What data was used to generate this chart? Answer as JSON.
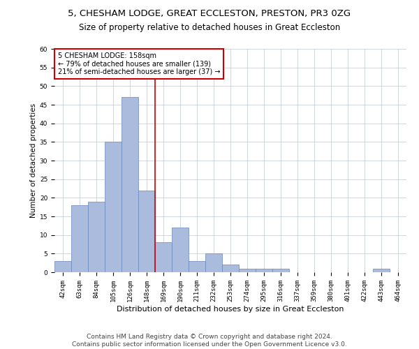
{
  "title1": "5, CHESHAM LODGE, GREAT ECCLESTON, PRESTON, PR3 0ZG",
  "title2": "Size of property relative to detached houses in Great Eccleston",
  "xlabel": "Distribution of detached houses by size in Great Eccleston",
  "ylabel": "Number of detached properties",
  "footer1": "Contains HM Land Registry data © Crown copyright and database right 2024.",
  "footer2": "Contains public sector information licensed under the Open Government Licence v3.0.",
  "annotation_line1": "5 CHESHAM LODGE: 158sqm",
  "annotation_line2": "← 79% of detached houses are smaller (139)",
  "annotation_line3": "21% of semi-detached houses are larger (37) →",
  "bar_labels": [
    "42sqm",
    "63sqm",
    "84sqm",
    "105sqm",
    "126sqm",
    "148sqm",
    "169sqm",
    "190sqm",
    "211sqm",
    "232sqm",
    "253sqm",
    "274sqm",
    "295sqm",
    "316sqm",
    "337sqm",
    "359sqm",
    "380sqm",
    "401sqm",
    "422sqm",
    "443sqm",
    "464sqm"
  ],
  "bar_values": [
    3,
    18,
    19,
    35,
    47,
    22,
    8,
    12,
    3,
    5,
    2,
    1,
    1,
    1,
    0,
    0,
    0,
    0,
    0,
    1,
    0
  ],
  "bar_color": "#AABBDD",
  "bar_edge_color": "#6688BB",
  "property_line_x": 5.5,
  "ylim": [
    0,
    60
  ],
  "yticks": [
    0,
    5,
    10,
    15,
    20,
    25,
    30,
    35,
    40,
    45,
    50,
    55,
    60
  ],
  "background_color": "#FFFFFF",
  "grid_color": "#C8D0DC",
  "annotation_box_color": "#FFFFFF",
  "annotation_box_edge_color": "#CC0000",
  "vline_color": "#CC0000",
  "title1_fontsize": 9.5,
  "title2_fontsize": 8.5,
  "tick_fontsize": 6.5,
  "ylabel_fontsize": 7.5,
  "xlabel_fontsize": 8,
  "annotation_fontsize": 7,
  "footer_fontsize": 6.5
}
